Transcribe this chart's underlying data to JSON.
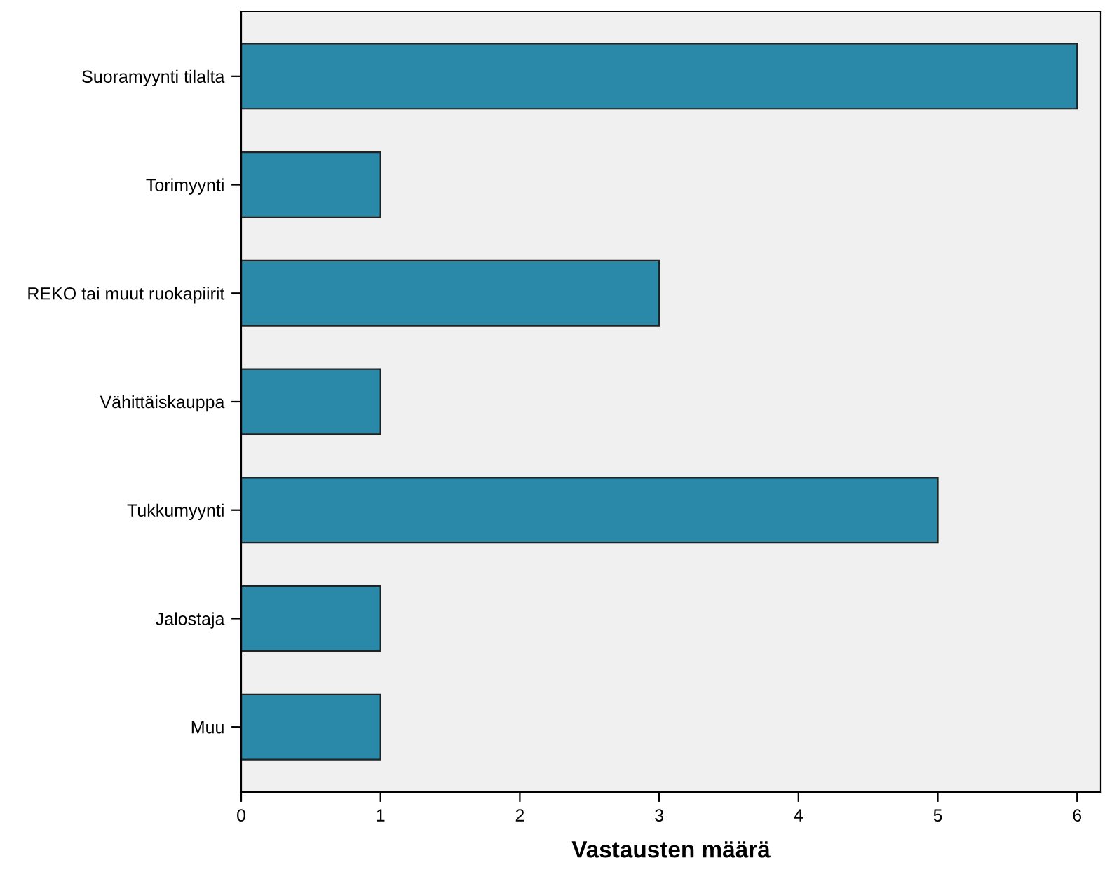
{
  "chart_data": {
    "type": "bar",
    "orientation": "horizontal",
    "xlabel": "Vastausten määrä",
    "categories": [
      "Suoramyynti tilalta",
      "Torimyynti",
      "REKO tai muut ruokapiirit",
      "Vähittäiskauppa",
      "Tukkumyynti",
      "Jalostaja",
      "Muu"
    ],
    "values": [
      6,
      1,
      3,
      1,
      5,
      1,
      1
    ],
    "color": "#2a88a8",
    "xlim": [
      0,
      6.17
    ],
    "xticks": [
      0,
      1,
      2,
      3,
      4,
      5,
      6
    ],
    "grid": false
  }
}
